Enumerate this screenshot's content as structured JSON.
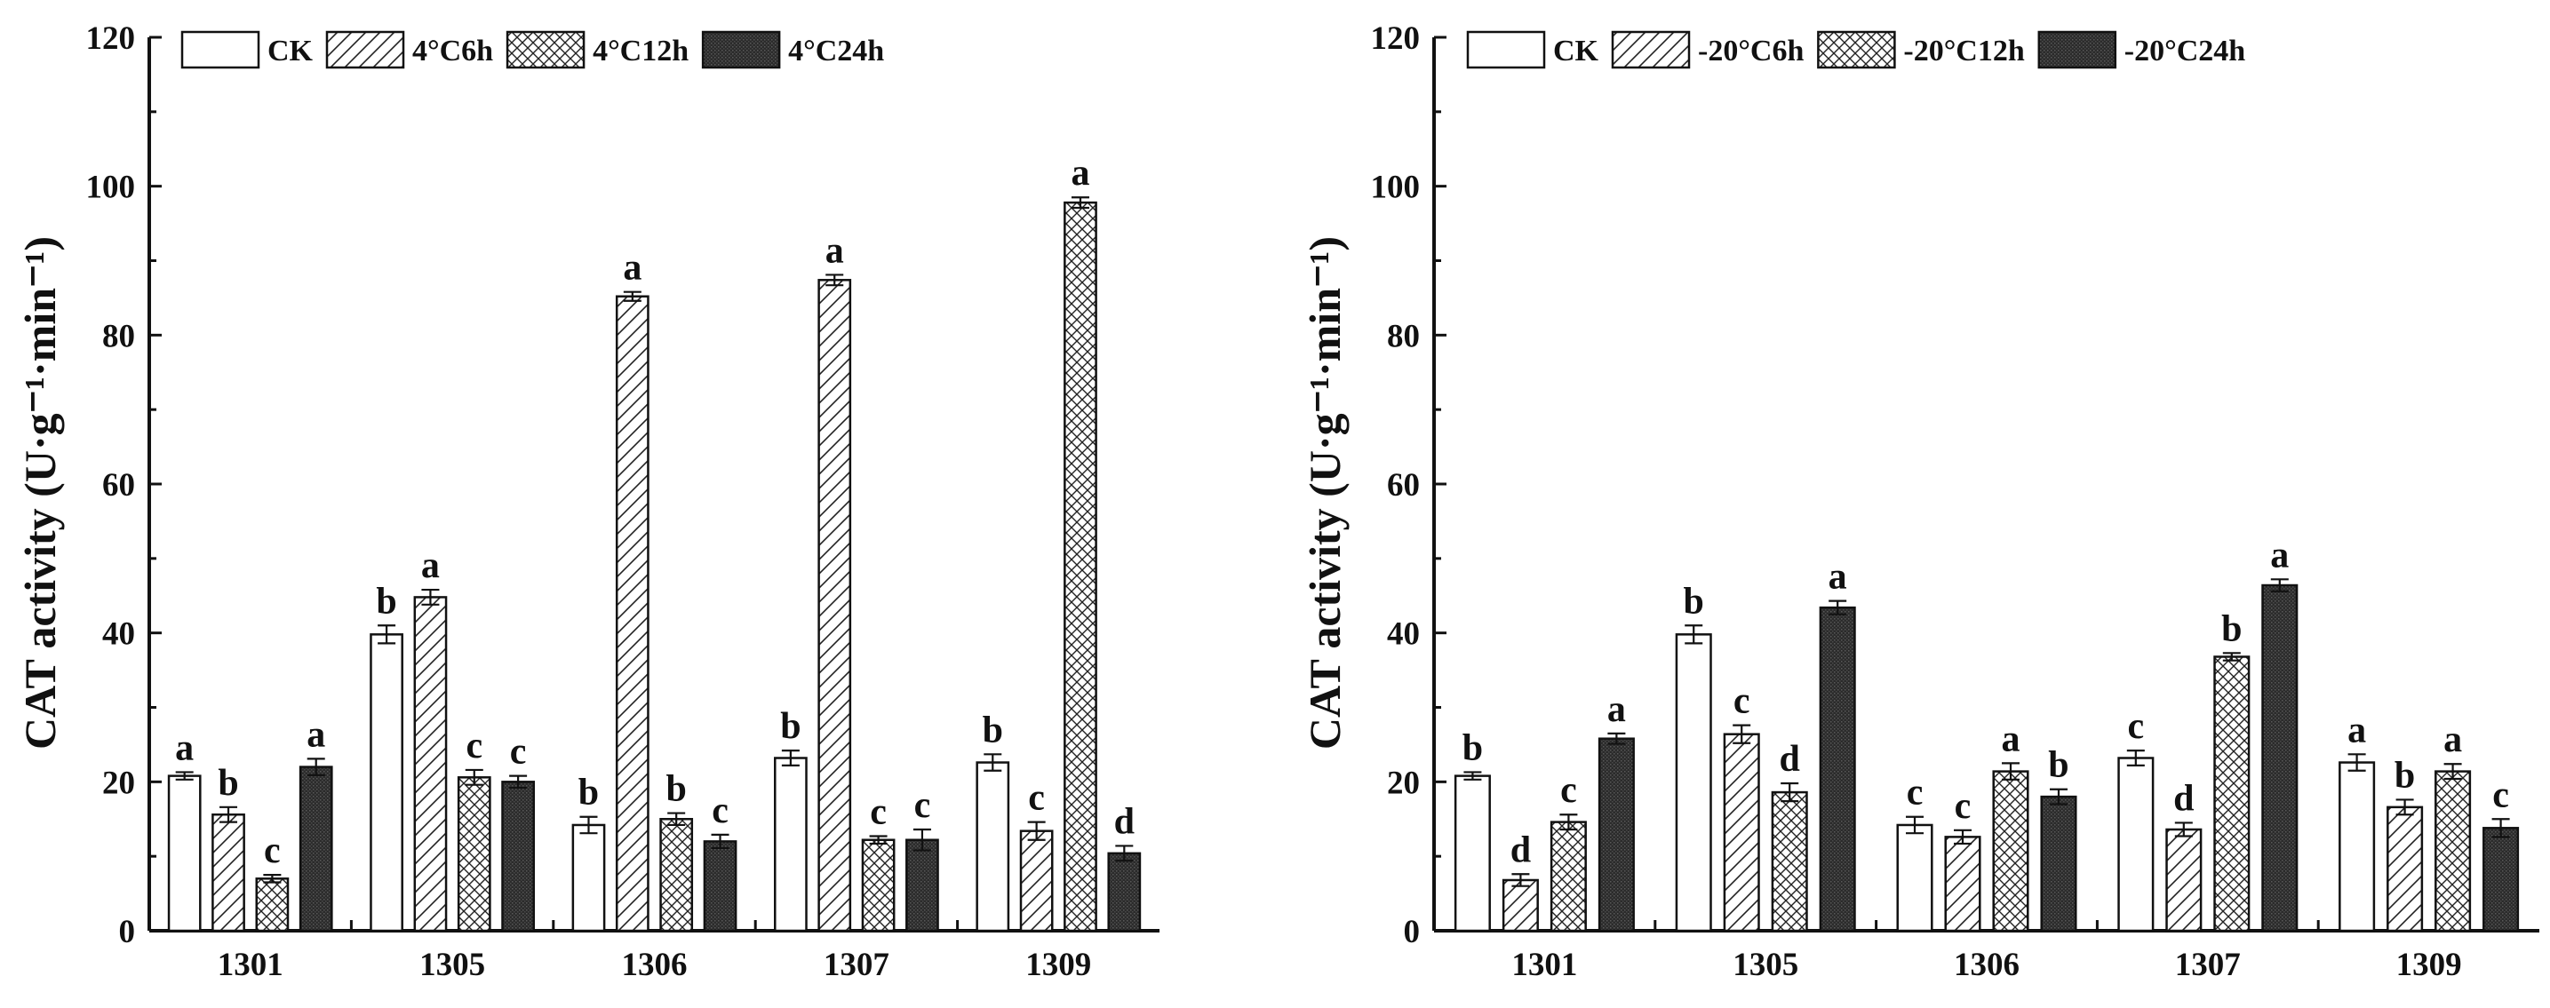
{
  "chart_data": [
    {
      "type": "bar",
      "title": "",
      "xlabel": "",
      "ylabel": "CAT activity (U·g⁻¹·min⁻¹)",
      "ylim": [
        0,
        120
      ],
      "yticks": [
        0,
        20,
        40,
        60,
        80,
        100,
        120
      ],
      "categories": [
        "1301",
        "1305",
        "1306",
        "1307",
        "1309"
      ],
      "legend_position": "top-left",
      "series": [
        {
          "name": "CK",
          "pattern": "open",
          "values": [
            20.8,
            39.8,
            14.2,
            23.2,
            22.6
          ],
          "errors": [
            0.5,
            1.2,
            1.1,
            1.0,
            1.1
          ],
          "letters": [
            "a",
            "b",
            "b",
            "b",
            "b"
          ]
        },
        {
          "name": "4°C6h",
          "pattern": "hatch",
          "values": [
            15.6,
            44.8,
            85.2,
            87.4,
            13.4
          ],
          "errors": [
            1.0,
            1.0,
            0.6,
            0.7,
            1.2
          ],
          "letters": [
            "b",
            "a",
            "a",
            "a",
            "c"
          ]
        },
        {
          "name": "4°C12h",
          "pattern": "crosshatch",
          "values": [
            7.0,
            20.6,
            15.0,
            12.2,
            97.8
          ],
          "errors": [
            0.5,
            1.0,
            0.8,
            0.5,
            0.7
          ],
          "letters": [
            "c",
            "c",
            "b",
            "c",
            "a"
          ]
        },
        {
          "name": "4°C24h",
          "pattern": "solid",
          "values": [
            22.0,
            20.0,
            12.0,
            12.2,
            10.4
          ],
          "errors": [
            1.1,
            0.8,
            0.9,
            1.4,
            1.0
          ],
          "letters": [
            "a",
            "c",
            "c",
            "c",
            "d"
          ]
        }
      ]
    },
    {
      "type": "bar",
      "title": "",
      "xlabel": "",
      "ylabel": "CAT activity (U·g⁻¹·min⁻¹)",
      "ylim": [
        0,
        120
      ],
      "yticks": [
        0,
        20,
        40,
        60,
        80,
        100,
        120
      ],
      "categories": [
        "1301",
        "1305",
        "1306",
        "1307",
        "1309"
      ],
      "legend_position": "top-left",
      "series": [
        {
          "name": "CK",
          "pattern": "open",
          "values": [
            20.8,
            39.8,
            14.2,
            23.2,
            22.6
          ],
          "errors": [
            0.5,
            1.2,
            1.1,
            1.0,
            1.1
          ],
          "letters": [
            "b",
            "b",
            "c",
            "c",
            "a"
          ]
        },
        {
          "name": "-20°C6h",
          "pattern": "hatch",
          "values": [
            6.8,
            26.4,
            12.6,
            13.6,
            16.6
          ],
          "errors": [
            0.8,
            1.2,
            0.9,
            0.9,
            1.0
          ],
          "letters": [
            "d",
            "c",
            "c",
            "d",
            "b"
          ]
        },
        {
          "name": "-20°C12h",
          "pattern": "crosshatch",
          "values": [
            14.6,
            18.6,
            21.4,
            36.8,
            21.4
          ],
          "errors": [
            1.0,
            1.2,
            1.1,
            0.5,
            1.0
          ],
          "letters": [
            "c",
            "d",
            "a",
            "b",
            "a"
          ]
        },
        {
          "name": "-20°C24h",
          "pattern": "solid",
          "values": [
            25.8,
            43.4,
            18.0,
            46.4,
            13.8
          ],
          "errors": [
            0.7,
            0.9,
            1.0,
            0.8,
            1.2
          ],
          "letters": [
            "a",
            "a",
            "b",
            "a",
            "c"
          ]
        }
      ]
    }
  ]
}
